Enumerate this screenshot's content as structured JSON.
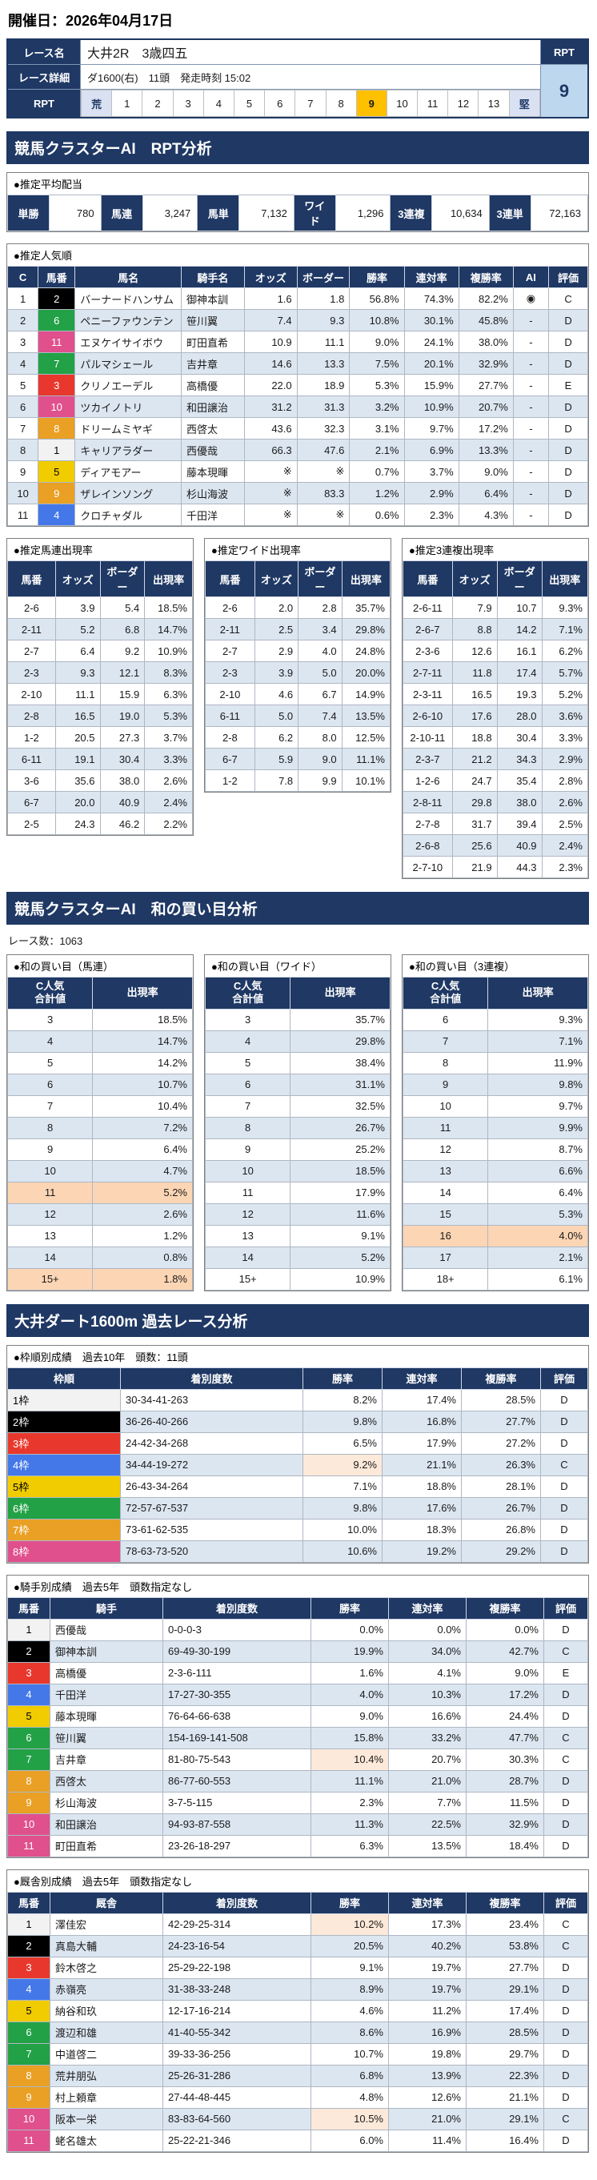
{
  "page": {
    "date_label": "開催日：2026年04月17日"
  },
  "race_info": {
    "name_label": "レース名",
    "name_value": "大井2R　3歳四五",
    "detail_label": "レース詳細",
    "detail_value": "ダ1600(右)　11頭　発走時刻 15:02",
    "rpt_label": "RPT",
    "rpt_header": "RPT",
    "rpt_value": "9",
    "rpt_selected": "9",
    "rpt_scale": [
      "荒",
      "1",
      "2",
      "3",
      "4",
      "5",
      "6",
      "7",
      "8",
      "9",
      "10",
      "11",
      "12",
      "13",
      "堅"
    ]
  },
  "section1": {
    "title": "競馬クラスターAI　RPT分析",
    "payout": {
      "title": "●推定平均配当",
      "items": [
        {
          "label": "単勝",
          "value": "780"
        },
        {
          "label": "馬連",
          "value": "3,247"
        },
        {
          "label": "馬単",
          "value": "7,132"
        },
        {
          "label": "ワイド",
          "value": "1,296"
        },
        {
          "label": "3連複",
          "value": "10,634"
        },
        {
          "label": "3連単",
          "value": "72,163"
        }
      ]
    },
    "popularity": {
      "title": "●推定人気順",
      "headers": [
        "C",
        "馬番",
        "馬名",
        "騎手名",
        "オッズ",
        "ボーダー",
        "勝率",
        "連対率",
        "複勝率",
        "AI",
        "評価"
      ],
      "rows": [
        {
          "c": "1",
          "num": "2",
          "name": "バーナードハンサム",
          "jockey": "御神本訓",
          "odds": "1.6",
          "border": "1.8",
          "win": "56.8%",
          "ren": "74.3%",
          "fuku": "82.2%",
          "ai": "◉",
          "eval": "C"
        },
        {
          "c": "2",
          "num": "6",
          "name": "ペニーファウンテン",
          "jockey": "笹川翼",
          "odds": "7.4",
          "border": "9.3",
          "win": "10.8%",
          "ren": "30.1%",
          "fuku": "45.8%",
          "ai": "-",
          "eval": "D"
        },
        {
          "c": "3",
          "num": "11",
          "name": "エヌケイサイボウ",
          "jockey": "町田直希",
          "odds": "10.9",
          "border": "11.1",
          "win": "9.0%",
          "ren": "24.1%",
          "fuku": "38.0%",
          "ai": "-",
          "eval": "D"
        },
        {
          "c": "4",
          "num": "7",
          "name": "パルマシェール",
          "jockey": "吉井章",
          "odds": "14.6",
          "border": "13.3",
          "win": "7.5%",
          "ren": "20.1%",
          "fuku": "32.9%",
          "ai": "-",
          "eval": "D"
        },
        {
          "c": "5",
          "num": "3",
          "name": "クリノエーデル",
          "jockey": "高橋優",
          "odds": "22.0",
          "border": "18.9",
          "win": "5.3%",
          "ren": "15.9%",
          "fuku": "27.7%",
          "ai": "-",
          "eval": "E"
        },
        {
          "c": "6",
          "num": "10",
          "name": "ツカイノトリ",
          "jockey": "和田譲治",
          "odds": "31.2",
          "border": "31.3",
          "win": "3.2%",
          "ren": "10.9%",
          "fuku": "20.7%",
          "ai": "-",
          "eval": "D"
        },
        {
          "c": "7",
          "num": "8",
          "name": "ドリームミヤギ",
          "jockey": "西啓太",
          "odds": "43.6",
          "border": "32.3",
          "win": "3.1%",
          "ren": "9.7%",
          "fuku": "17.2%",
          "ai": "-",
          "eval": "D"
        },
        {
          "c": "8",
          "num": "1",
          "name": "キャリアラダー",
          "jockey": "西優哉",
          "odds": "66.3",
          "border": "47.6",
          "win": "2.1%",
          "ren": "6.9%",
          "fuku": "13.3%",
          "ai": "-",
          "eval": "D"
        },
        {
          "c": "9",
          "num": "5",
          "name": "ディアモアー",
          "jockey": "藤本現暉",
          "odds": "※",
          "border": "※",
          "win": "0.7%",
          "ren": "3.7%",
          "fuku": "9.0%",
          "ai": "-",
          "eval": "D"
        },
        {
          "c": "10",
          "num": "9",
          "name": "ザレインソング",
          "jockey": "杉山海波",
          "odds": "※",
          "border": "83.3",
          "win": "1.2%",
          "ren": "2.9%",
          "fuku": "6.4%",
          "ai": "-",
          "eval": "D"
        },
        {
          "c": "11",
          "num": "4",
          "name": "クロチャダル",
          "jockey": "千田洋",
          "odds": "※",
          "border": "※",
          "win": "0.6%",
          "ren": "2.3%",
          "fuku": "4.3%",
          "ai": "-",
          "eval": "D"
        }
      ]
    },
    "umaren": {
      "title": "●推定馬連出現率",
      "headers": [
        "馬番",
        "オッズ",
        "ボーダー",
        "出現率"
      ],
      "rows": [
        {
          "pair": "2-6",
          "odds": "3.9",
          "border": "5.4",
          "rate": "18.5%"
        },
        {
          "pair": "2-11",
          "odds": "5.2",
          "border": "6.8",
          "rate": "14.7%"
        },
        {
          "pair": "2-7",
          "odds": "6.4",
          "border": "9.2",
          "rate": "10.9%"
        },
        {
          "pair": "2-3",
          "odds": "9.3",
          "border": "12.1",
          "rate": "8.3%"
        },
        {
          "pair": "2-10",
          "odds": "11.1",
          "border": "15.9",
          "rate": "6.3%"
        },
        {
          "pair": "2-8",
          "odds": "16.5",
          "border": "19.0",
          "rate": "5.3%"
        },
        {
          "pair": "1-2",
          "odds": "20.5",
          "border": "27.3",
          "rate": "3.7%"
        },
        {
          "pair": "6-11",
          "odds": "19.1",
          "border": "30.4",
          "rate": "3.3%"
        },
        {
          "pair": "3-6",
          "odds": "35.6",
          "border": "38.0",
          "rate": "2.6%"
        },
        {
          "pair": "6-7",
          "odds": "20.0",
          "border": "40.9",
          "rate": "2.4%"
        },
        {
          "pair": "2-5",
          "odds": "24.3",
          "border": "46.2",
          "rate": "2.2%"
        }
      ]
    },
    "wide": {
      "title": "●推定ワイド出現率",
      "headers": [
        "馬番",
        "オッズ",
        "ボーダー",
        "出現率"
      ],
      "rows": [
        {
          "pair": "2-6",
          "odds": "2.0",
          "border": "2.8",
          "rate": "35.7%"
        },
        {
          "pair": "2-11",
          "odds": "2.5",
          "border": "3.4",
          "rate": "29.8%"
        },
        {
          "pair": "2-7",
          "odds": "2.9",
          "border": "4.0",
          "rate": "24.8%"
        },
        {
          "pair": "2-3",
          "odds": "3.9",
          "border": "5.0",
          "rate": "20.0%"
        },
        {
          "pair": "2-10",
          "odds": "4.6",
          "border": "6.7",
          "rate": "14.9%"
        },
        {
          "pair": "6-11",
          "odds": "5.0",
          "border": "7.4",
          "rate": "13.5%"
        },
        {
          "pair": "2-8",
          "odds": "6.2",
          "border": "8.0",
          "rate": "12.5%"
        },
        {
          "pair": "6-7",
          "odds": "5.9",
          "border": "9.0",
          "rate": "11.1%"
        },
        {
          "pair": "1-2",
          "odds": "7.8",
          "border": "9.9",
          "rate": "10.1%"
        }
      ]
    },
    "sanrenpuku": {
      "title": "●推定3連複出現率",
      "headers": [
        "馬番",
        "オッズ",
        "ボーダー",
        "出現率"
      ],
      "rows": [
        {
          "pair": "2-6-11",
          "odds": "7.9",
          "border": "10.7",
          "rate": "9.3%"
        },
        {
          "pair": "2-6-7",
          "odds": "8.8",
          "border": "14.2",
          "rate": "7.1%"
        },
        {
          "pair": "2-3-6",
          "odds": "12.6",
          "border": "16.1",
          "rate": "6.2%"
        },
        {
          "pair": "2-7-11",
          "odds": "11.8",
          "border": "17.4",
          "rate": "5.7%"
        },
        {
          "pair": "2-3-11",
          "odds": "16.5",
          "border": "19.3",
          "rate": "5.2%"
        },
        {
          "pair": "2-6-10",
          "odds": "17.6",
          "border": "28.0",
          "rate": "3.6%"
        },
        {
          "pair": "2-10-11",
          "odds": "18.8",
          "border": "30.4",
          "rate": "3.3%"
        },
        {
          "pair": "2-3-7",
          "odds": "21.2",
          "border": "34.3",
          "rate": "2.9%"
        },
        {
          "pair": "1-2-6",
          "odds": "24.7",
          "border": "35.4",
          "rate": "2.8%"
        },
        {
          "pair": "2-8-11",
          "odds": "29.8",
          "border": "38.0",
          "rate": "2.6%"
        },
        {
          "pair": "2-7-8",
          "odds": "31.7",
          "border": "39.4",
          "rate": "2.5%"
        },
        {
          "pair": "2-6-8",
          "odds": "25.6",
          "border": "40.9",
          "rate": "2.4%"
        },
        {
          "pair": "2-7-10",
          "odds": "21.9",
          "border": "44.3",
          "rate": "2.3%"
        }
      ]
    }
  },
  "section2": {
    "title": "競馬クラスターAI　和の買い目分析",
    "race_count": "レース数：1063",
    "umaren": {
      "title": "●和の買い目（馬連）",
      "headers": [
        "C人気\n合計値",
        "出現率"
      ],
      "rows": [
        {
          "sum": "3",
          "rate": "18.5%"
        },
        {
          "sum": "4",
          "rate": "14.7%"
        },
        {
          "sum": "5",
          "rate": "14.2%"
        },
        {
          "sum": "6",
          "rate": "10.7%"
        },
        {
          "sum": "7",
          "rate": "10.4%"
        },
        {
          "sum": "8",
          "rate": "7.2%"
        },
        {
          "sum": "9",
          "rate": "6.4%"
        },
        {
          "sum": "10",
          "rate": "4.7%"
        },
        {
          "sum": "11",
          "rate": "5.2%",
          "hl": true
        },
        {
          "sum": "12",
          "rate": "2.6%"
        },
        {
          "sum": "13",
          "rate": "1.2%"
        },
        {
          "sum": "14",
          "rate": "0.8%"
        },
        {
          "sum": "15+",
          "rate": "1.8%",
          "hl": true
        }
      ]
    },
    "wide": {
      "title": "●和の買い目（ワイド）",
      "headers": [
        "C人気\n合計値",
        "出現率"
      ],
      "rows": [
        {
          "sum": "3",
          "rate": "35.7%"
        },
        {
          "sum": "4",
          "rate": "29.8%"
        },
        {
          "sum": "5",
          "rate": "38.4%"
        },
        {
          "sum": "6",
          "rate": "31.1%"
        },
        {
          "sum": "7",
          "rate": "32.5%"
        },
        {
          "sum": "8",
          "rate": "26.7%"
        },
        {
          "sum": "9",
          "rate": "25.2%"
        },
        {
          "sum": "10",
          "rate": "18.5%"
        },
        {
          "sum": "11",
          "rate": "17.9%"
        },
        {
          "sum": "12",
          "rate": "11.6%"
        },
        {
          "sum": "13",
          "rate": "9.1%"
        },
        {
          "sum": "14",
          "rate": "5.2%"
        },
        {
          "sum": "15+",
          "rate": "10.9%"
        }
      ]
    },
    "sanrenpuku": {
      "title": "●和の買い目（3連複）",
      "headers": [
        "C人気\n合計値",
        "出現率"
      ],
      "rows": [
        {
          "sum": "6",
          "rate": "9.3%"
        },
        {
          "sum": "7",
          "rate": "7.1%"
        },
        {
          "sum": "8",
          "rate": "11.9%"
        },
        {
          "sum": "9",
          "rate": "9.8%"
        },
        {
          "sum": "10",
          "rate": "9.7%"
        },
        {
          "sum": "11",
          "rate": "9.9%"
        },
        {
          "sum": "12",
          "rate": "8.7%"
        },
        {
          "sum": "13",
          "rate": "6.6%"
        },
        {
          "sum": "14",
          "rate": "6.4%"
        },
        {
          "sum": "15",
          "rate": "5.3%"
        },
        {
          "sum": "16",
          "rate": "4.0%",
          "hl": true
        },
        {
          "sum": "17",
          "rate": "2.1%"
        },
        {
          "sum": "18+",
          "rate": "6.1%"
        }
      ]
    }
  },
  "section3": {
    "title": "大井ダート1600m 過去レース分析",
    "frame": {
      "title": "●枠順別成績　過去10年　頭数：11頭",
      "headers": [
        "枠順",
        "着別度数",
        "勝率",
        "連対率",
        "複勝率",
        "評価"
      ],
      "rows": [
        {
          "frame": "1枠",
          "record": "30-34-41-263",
          "win": "8.2%",
          "ren": "17.4%",
          "fuku": "28.5%",
          "eval": "D"
        },
        {
          "frame": "2枠",
          "record": "36-26-40-266",
          "win": "9.8%",
          "ren": "16.8%",
          "fuku": "27.7%",
          "eval": "D"
        },
        {
          "frame": "3枠",
          "record": "24-42-34-268",
          "win": "6.5%",
          "ren": "17.9%",
          "fuku": "27.2%",
          "eval": "D"
        },
        {
          "frame": "4枠",
          "record": "34-44-19-272",
          "win": "9.2%",
          "ren": "21.1%",
          "fuku": "26.3%",
          "eval": "C",
          "hlwin": true
        },
        {
          "frame": "5枠",
          "record": "26-43-34-264",
          "win": "7.1%",
          "ren": "18.8%",
          "fuku": "28.1%",
          "eval": "D"
        },
        {
          "frame": "6枠",
          "record": "72-57-67-537",
          "win": "9.8%",
          "ren": "17.6%",
          "fuku": "26.7%",
          "eval": "D"
        },
        {
          "frame": "7枠",
          "record": "73-61-62-535",
          "win": "10.0%",
          "ren": "18.3%",
          "fuku": "26.8%",
          "eval": "D"
        },
        {
          "frame": "8枠",
          "record": "78-63-73-520",
          "win": "10.6%",
          "ren": "19.2%",
          "fuku": "29.2%",
          "eval": "D"
        }
      ]
    },
    "jockey": {
      "title": "●騎手別成績　過去5年　頭数指定なし",
      "headers": [
        "馬番",
        "騎手",
        "着別度数",
        "勝率",
        "連対率",
        "複勝率",
        "評価"
      ],
      "rows": [
        {
          "num": "1",
          "name": "西優哉",
          "record": "0-0-0-3",
          "win": "0.0%",
          "ren": "0.0%",
          "fuku": "0.0%",
          "eval": "D"
        },
        {
          "num": "2",
          "name": "御神本訓",
          "record": "69-49-30-199",
          "win": "19.9%",
          "ren": "34.0%",
          "fuku": "42.7%",
          "eval": "C"
        },
        {
          "num": "3",
          "name": "高橋優",
          "record": "2-3-6-111",
          "win": "1.6%",
          "ren": "4.1%",
          "fuku": "9.0%",
          "eval": "E"
        },
        {
          "num": "4",
          "name": "千田洋",
          "record": "17-27-30-355",
          "win": "4.0%",
          "ren": "10.3%",
          "fuku": "17.2%",
          "eval": "D"
        },
        {
          "num": "5",
          "name": "藤本現暉",
          "record": "76-64-66-638",
          "win": "9.0%",
          "ren": "16.6%",
          "fuku": "24.4%",
          "eval": "D"
        },
        {
          "num": "6",
          "name": "笹川翼",
          "record": "154-169-141-508",
          "win": "15.8%",
          "ren": "33.2%",
          "fuku": "47.7%",
          "eval": "C"
        },
        {
          "num": "7",
          "name": "吉井章",
          "record": "81-80-75-543",
          "win": "10.4%",
          "ren": "20.7%",
          "fuku": "30.3%",
          "eval": "C",
          "hlwin": true
        },
        {
          "num": "8",
          "name": "西啓太",
          "record": "86-77-60-553",
          "win": "11.1%",
          "ren": "21.0%",
          "fuku": "28.7%",
          "eval": "D"
        },
        {
          "num": "9",
          "name": "杉山海波",
          "record": "3-7-5-115",
          "win": "2.3%",
          "ren": "7.7%",
          "fuku": "11.5%",
          "eval": "D"
        },
        {
          "num": "10",
          "name": "和田譲治",
          "record": "94-93-87-558",
          "win": "11.3%",
          "ren": "22.5%",
          "fuku": "32.9%",
          "eval": "D"
        },
        {
          "num": "11",
          "name": "町田直希",
          "record": "23-26-18-297",
          "win": "6.3%",
          "ren": "13.5%",
          "fuku": "18.4%",
          "eval": "D"
        }
      ]
    },
    "stable": {
      "title": "●厩舎別成績　過去5年　頭数指定なし",
      "headers": [
        "馬番",
        "厩舎",
        "着別度数",
        "勝率",
        "連対率",
        "複勝率",
        "評価"
      ],
      "rows": [
        {
          "num": "1",
          "name": "澤佳宏",
          "record": "42-29-25-314",
          "win": "10.2%",
          "ren": "17.3%",
          "fuku": "23.4%",
          "eval": "C",
          "hlwin": true
        },
        {
          "num": "2",
          "name": "真島大輔",
          "record": "24-23-16-54",
          "win": "20.5%",
          "ren": "40.2%",
          "fuku": "53.8%",
          "eval": "C"
        },
        {
          "num": "3",
          "name": "鈴木啓之",
          "record": "25-29-22-198",
          "win": "9.1%",
          "ren": "19.7%",
          "fuku": "27.7%",
          "eval": "D"
        },
        {
          "num": "4",
          "name": "赤嶺亮",
          "record": "31-38-33-248",
          "win": "8.9%",
          "ren": "19.7%",
          "fuku": "29.1%",
          "eval": "D"
        },
        {
          "num": "5",
          "name": "納谷和玖",
          "record": "12-17-16-214",
          "win": "4.6%",
          "ren": "11.2%",
          "fuku": "17.4%",
          "eval": "D"
        },
        {
          "num": "6",
          "name": "渡辺和雄",
          "record": "41-40-55-342",
          "win": "8.6%",
          "ren": "16.9%",
          "fuku": "28.5%",
          "eval": "D"
        },
        {
          "num": "7",
          "name": "中道啓二",
          "record": "39-33-36-256",
          "win": "10.7%",
          "ren": "19.8%",
          "fuku": "29.7%",
          "eval": "D"
        },
        {
          "num": "8",
          "name": "荒井朋弘",
          "record": "25-26-31-286",
          "win": "6.8%",
          "ren": "13.9%",
          "fuku": "22.3%",
          "eval": "D"
        },
        {
          "num": "9",
          "name": "村上頼章",
          "record": "27-44-48-445",
          "win": "4.8%",
          "ren": "12.6%",
          "fuku": "21.1%",
          "eval": "D"
        },
        {
          "num": "10",
          "name": "阪本一栄",
          "record": "83-83-64-560",
          "win": "10.5%",
          "ren": "21.0%",
          "fuku": "29.1%",
          "eval": "C",
          "hlwin": true
        },
        {
          "num": "11",
          "name": "蛯名雄太",
          "record": "25-22-21-346",
          "win": "6.0%",
          "ren": "11.4%",
          "fuku": "16.4%",
          "eval": "D"
        }
      ]
    }
  }
}
